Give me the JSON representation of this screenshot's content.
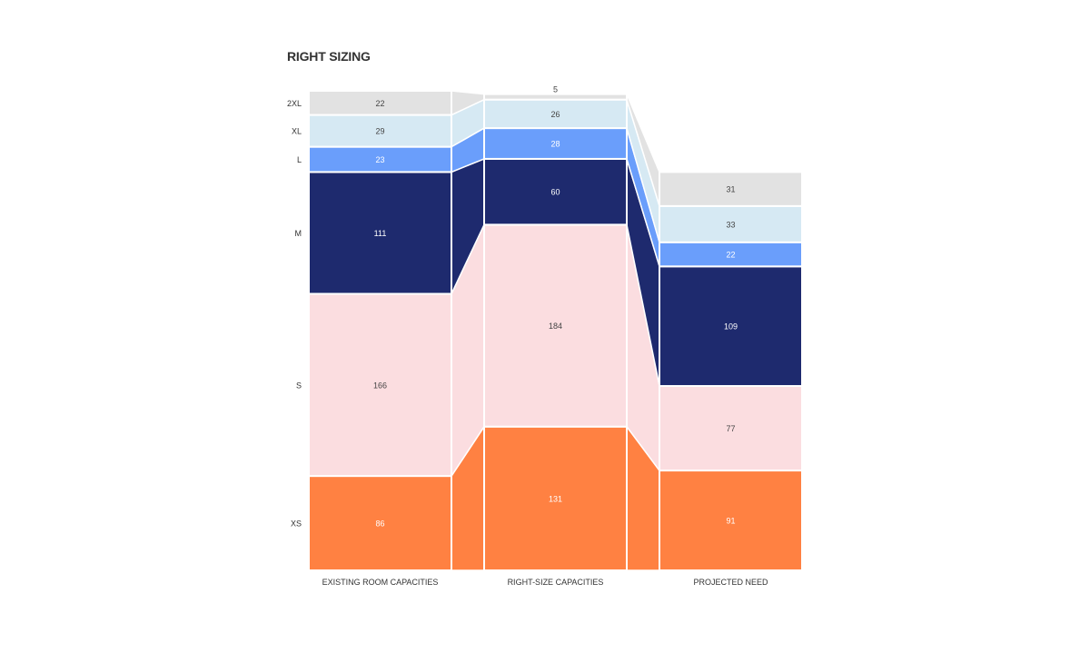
{
  "chart_data": {
    "type": "bar",
    "stacked": true,
    "title": "RIGHT SIZING",
    "categories": [
      "EXISTING ROOM CAPACITIES",
      "RIGHT-SIZE CAPACITIES",
      "PROJECTED NEED"
    ],
    "series": [
      {
        "name": "XS",
        "values": [
          86,
          131,
          91
        ],
        "color": "#ff8142",
        "label_color": "#ffffff"
      },
      {
        "name": "S",
        "values": [
          166,
          184,
          77
        ],
        "color": "#fbdde0",
        "label_color": "#444444"
      },
      {
        "name": "M",
        "values": [
          111,
          60,
          109
        ],
        "color": "#1e2a6e",
        "label_color": "#ffffff"
      },
      {
        "name": "L",
        "values": [
          23,
          28,
          22
        ],
        "color": "#6a9efb",
        "label_color": "#ffffff"
      },
      {
        "name": "XL",
        "values": [
          29,
          26,
          33
        ],
        "color": "#d6e9f3",
        "label_color": "#444444"
      },
      {
        "name": "2XL",
        "values": [
          22,
          5,
          31
        ],
        "color": "#e2e2e2",
        "label_color": "#444444"
      }
    ],
    "connector_bands": true,
    "grid": false
  }
}
